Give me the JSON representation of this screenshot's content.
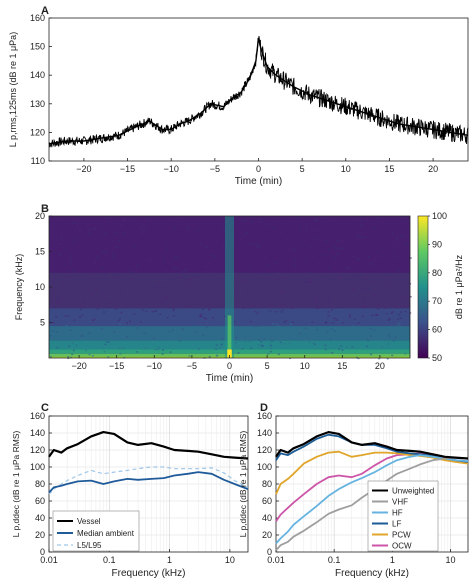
{
  "chart_data": [
    {
      "panel": "A",
      "type": "line",
      "ylabel": "L p,rms,125ms (dB re 1 μPa)",
      "xlabel": "Time (min)",
      "xlim": [
        -24,
        24
      ],
      "ylim": [
        110,
        160
      ],
      "xticks": [
        -20,
        -15,
        -10,
        -5,
        0,
        5,
        10,
        15,
        20
      ],
      "yticks": [
        110,
        120,
        130,
        140,
        150,
        160
      ],
      "series": [
        {
          "color": "#000000",
          "x": [
            -24,
            -22,
            -20,
            -18,
            -16,
            -14,
            -12.5,
            -11,
            -10,
            -9,
            -8,
            -6.5,
            -5.5,
            -4,
            -3,
            -2,
            -1,
            -0.3,
            0,
            0.3,
            1,
            2,
            3,
            4,
            6,
            8,
            10,
            12,
            14,
            16,
            18,
            20,
            22,
            24
          ],
          "y": [
            116,
            117,
            117,
            118,
            119,
            122,
            124,
            121,
            121,
            123,
            124,
            127,
            130,
            129,
            132,
            134,
            139,
            145,
            153,
            149,
            143,
            140,
            138,
            136,
            133,
            131,
            129,
            127,
            125,
            123,
            122,
            121,
            120,
            119
          ]
        }
      ]
    },
    {
      "panel": "B",
      "type": "heatmap",
      "ylabel": "Frequency (kHz)",
      "xlabel": "Time (min)",
      "xlim": [
        -24,
        24
      ],
      "ylim": [
        0,
        20
      ],
      "xticks": [
        -20,
        -15,
        -10,
        -5,
        0,
        5,
        10,
        15,
        20
      ],
      "yticks": [
        5,
        10,
        15,
        20
      ],
      "colorbar": {
        "label": "dB re 1 μPa²/Hz",
        "range": [
          50,
          100
        ],
        "ticks": [
          50,
          60,
          70,
          80,
          90,
          100
        ]
      }
    },
    {
      "panel": "C",
      "type": "line",
      "ylabel": "L p,ddec (dB re 1 μPa RMS)",
      "xlabel": "Frequency (kHz)",
      "xscale": "log",
      "xlim": [
        0.01,
        20
      ],
      "ylim": [
        0,
        160
      ],
      "xticks": [
        0.01,
        0.1,
        1,
        10
      ],
      "yticks": [
        0,
        20,
        40,
        60,
        80,
        100,
        120,
        140,
        160
      ],
      "legend": "lower-left",
      "x": [
        0.01,
        0.012,
        0.016,
        0.02,
        0.03,
        0.05,
        0.08,
        0.12,
        0.2,
        0.3,
        0.5,
        0.8,
        1.2,
        2,
        3,
        5,
        8,
        12,
        20
      ],
      "series": [
        {
          "name": "Vessel",
          "color": "#000000",
          "style": "solid",
          "values": [
            112,
            120,
            117,
            122,
            127,
            136,
            141,
            139,
            129,
            126,
            128,
            124,
            120,
            119,
            118,
            115,
            112,
            111,
            110
          ]
        },
        {
          "name": "Median ambient",
          "color": "#1f5a99",
          "style": "solid",
          "values": [
            70,
            76,
            78,
            80,
            83,
            84,
            80,
            83,
            86,
            85,
            86,
            87,
            90,
            92,
            94,
            92,
            85,
            80,
            74
          ]
        },
        {
          "name": "L5/L95",
          "color": "#9fc6e8",
          "style": "dashed",
          "values": [
            68,
            74,
            80,
            84,
            90,
            96,
            92,
            94,
            96,
            98,
            100,
            100,
            98,
            98,
            98,
            99,
            93,
            84,
            76
          ]
        }
      ]
    },
    {
      "panel": "D",
      "type": "line",
      "ylabel": "L p,ddec (dB re 1 μPa RMS)",
      "xlabel": "Frequency (kHz)",
      "xscale": "log",
      "xlim": [
        0.01,
        20
      ],
      "ylim": [
        0,
        160
      ],
      "xticks": [
        0.01,
        0.1,
        1,
        10
      ],
      "yticks": [
        0,
        20,
        40,
        60,
        80,
        100,
        120,
        140,
        160
      ],
      "legend": "lower-right",
      "x": [
        0.01,
        0.012,
        0.016,
        0.02,
        0.03,
        0.05,
        0.08,
        0.12,
        0.2,
        0.3,
        0.5,
        0.8,
        1.2,
        2,
        3,
        5,
        8,
        12,
        20
      ],
      "series": [
        {
          "name": "Unweighted",
          "color": "#000000",
          "values": [
            112,
            120,
            117,
            122,
            127,
            136,
            141,
            139,
            129,
            126,
            128,
            124,
            120,
            119,
            118,
            115,
            112,
            111,
            110
          ]
        },
        {
          "name": "VHF",
          "color": "#9e9e9e",
          "values": [
            2,
            8,
            12,
            18,
            25,
            35,
            45,
            50,
            55,
            64,
            74,
            84,
            92,
            98,
            103,
            108,
            110,
            111,
            110
          ]
        },
        {
          "name": "HF",
          "color": "#66b3e0",
          "values": [
            10,
            16,
            24,
            32,
            42,
            54,
            66,
            74,
            82,
            87,
            94,
            102,
            108,
            112,
            114,
            112,
            110,
            108,
            107
          ]
        },
        {
          "name": "LF",
          "color": "#1a5c96",
          "values": [
            108,
            116,
            114,
            118,
            124,
            133,
            138,
            136,
            129,
            126,
            126,
            122,
            118,
            116,
            115,
            113,
            110,
            108,
            106
          ]
        },
        {
          "name": "PCW",
          "color": "#e0a52a",
          "values": [
            68,
            80,
            86,
            92,
            104,
            112,
            117,
            118,
            112,
            114,
            117,
            117,
            116,
            114,
            113,
            111,
            108,
            106,
            104
          ]
        },
        {
          "name": "OCW",
          "color": "#cc55a8",
          "values": [
            36,
            44,
            52,
            58,
            68,
            80,
            88,
            90,
            88,
            92,
            102,
            110,
            114,
            115,
            116,
            114,
            110,
            108,
            106
          ]
        }
      ]
    }
  ]
}
